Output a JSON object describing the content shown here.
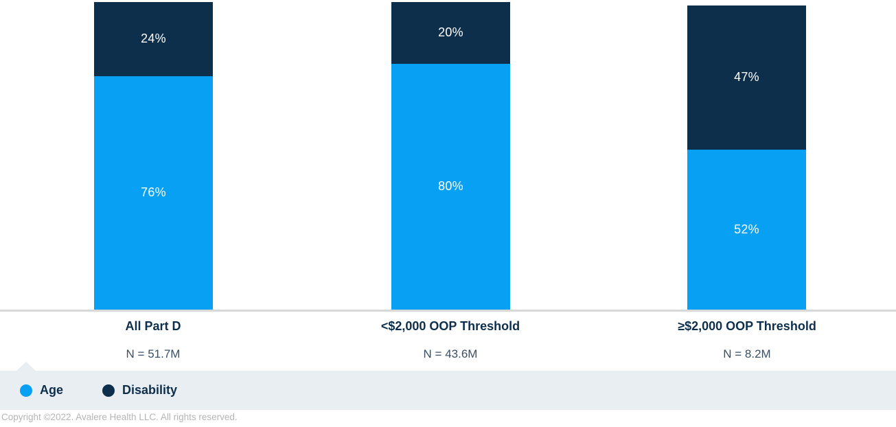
{
  "chart_data": {
    "type": "bar",
    "variant": "stacked-100-percent",
    "title": "",
    "xlabel": "",
    "ylabel": "",
    "ylim": [
      0,
      100
    ],
    "grid": false,
    "legend_position": "bottom-left",
    "categories": [
      "All Part D",
      "<$2,000 OOP Threshold",
      "≥$2,000 OOP Threshold"
    ],
    "n_labels": [
      "N = 51.7M",
      "N = 43.6M",
      "N = 8.2M"
    ],
    "series": [
      {
        "name": "Age",
        "color": "#08A0F2",
        "values": [
          76,
          80,
          52
        ],
        "labels": [
          "76%",
          "80%",
          "52%"
        ]
      },
      {
        "name": "Disability",
        "color": "#0D2F4C",
        "values": [
          24,
          20,
          47
        ],
        "labels": [
          "24%",
          "20%",
          "47%"
        ]
      }
    ]
  },
  "legend": {
    "items": [
      {
        "label": "Age",
        "color": "#08A0F2"
      },
      {
        "label": "Disability",
        "color": "#0D2F4C"
      }
    ]
  },
  "footer": {
    "copyright": "Copyright ©2022. Avalere Health LLC. All rights reserved."
  },
  "colors": {
    "age": "#08A0F2",
    "disability": "#0D2F4C",
    "category_label": "#0D2F4C",
    "n_label": "#3A4F63",
    "value_label": "#FFFFFF",
    "baseline": "#D8D8D8",
    "legend_band": "#E9EEF2",
    "copyright_text": "#B5B5B5"
  }
}
